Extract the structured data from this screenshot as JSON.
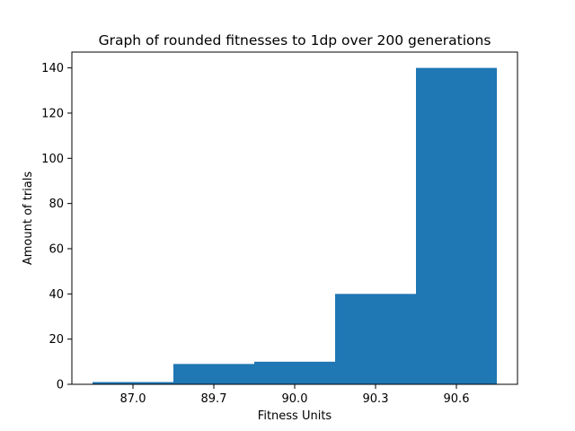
{
  "chart_data": {
    "type": "bar",
    "title": "Graph of rounded fitnesses to 1dp over 200 generations",
    "xlabel": "Fitness Units",
    "ylabel": "Amount of trials",
    "categories": [
      "87.0",
      "89.7",
      "90.0",
      "90.3",
      "90.6"
    ],
    "values": [
      1,
      9,
      10,
      40,
      140
    ],
    "ylim": [
      0,
      147
    ],
    "yticks": [
      0,
      20,
      40,
      60,
      80,
      100,
      120,
      140
    ],
    "grid": false,
    "legend": "none",
    "bar_color": "#1f77b4"
  }
}
